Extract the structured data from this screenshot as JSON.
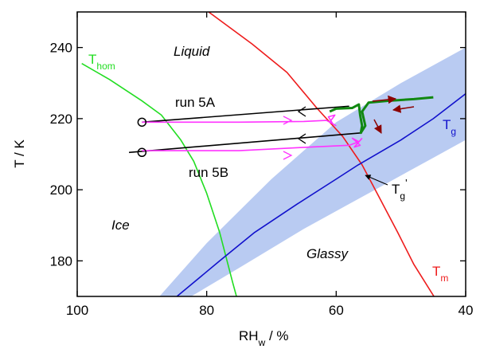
{
  "chart_data": {
    "type": "line",
    "xlim": [
      100,
      40
    ],
    "ylim": [
      170,
      250
    ],
    "xticks": [
      100,
      80,
      60,
      40
    ],
    "yticks": [
      180,
      200,
      220,
      240
    ],
    "x_label": {
      "text": "RH",
      "sub": "w",
      "suffix": " / %"
    },
    "y_label": "T / K",
    "band": {
      "color": "#b9cbf2",
      "upper": {
        "x": [
          87.3,
          80,
          70,
          60,
          50,
          40
        ],
        "values": [
          170,
          185,
          203,
          219,
          230,
          240
        ]
      },
      "lower": {
        "x": [
          82.4,
          75,
          65,
          55,
          45,
          40
        ],
        "values": [
          170,
          178,
          189,
          199,
          209,
          214
        ]
      }
    },
    "series": [
      {
        "color": "#22dd22",
        "x": [
          99.3,
          95,
          90,
          87,
          84,
          82,
          80,
          78,
          76,
          75.4
        ],
        "values": [
          235.5,
          231,
          225,
          221,
          214,
          208,
          199,
          188,
          174,
          170
        ]
      },
      {
        "color": "#ee1c1c",
        "x": [
          79.7,
          73,
          67.6,
          63,
          59,
          56,
          53.1,
          50.5,
          48,
          44.9
        ],
        "values": [
          250,
          241,
          233,
          223,
          215,
          207,
          197,
          188,
          179,
          170
        ]
      },
      {
        "color": "#1111cc",
        "x": [
          84.6,
          78,
          72.6,
          66,
          60,
          56.6,
          50,
          45,
          40
        ],
        "values": [
          170,
          180,
          188,
          196,
          203,
          207,
          214,
          220,
          227
        ]
      },
      {
        "color": "#000000",
        "x": [
          90,
          58
        ],
        "values": [
          219,
          223.5
        ]
      },
      {
        "color": "#000000",
        "x": [
          92,
          56
        ],
        "values": [
          210.5,
          216
        ]
      },
      {
        "color": "#ff33ff",
        "x": [
          90,
          75,
          65,
          61.5,
          60.5,
          61.2,
          60.2,
          61,
          60
        ],
        "values": [
          219,
          219,
          219.2,
          219.5,
          218.5,
          220.5,
          221,
          219,
          218
        ]
      },
      {
        "color": "#ff33ff",
        "x": [
          90,
          75,
          64,
          58,
          56.5,
          57.5,
          56.3,
          57.2,
          56
        ],
        "values": [
          211,
          211,
          212,
          212.5,
          213.5,
          214.5,
          212.5,
          212,
          214.5
        ]
      },
      {
        "color": "#118811",
        "x": [
          61,
          60,
          57.5,
          56.5,
          56.3,
          56,
          56.2,
          55.5,
          56,
          55,
          52,
          48,
          45
        ],
        "values": [
          222,
          222.8,
          223,
          224,
          221,
          218,
          216,
          218,
          222,
          224.5,
          225,
          225.5,
          226
        ]
      }
    ],
    "markers": {
      "x": [
        90,
        90
      ],
      "values": [
        219,
        210.5
      ]
    },
    "annotations": [
      "Liquid",
      "Ice",
      "Glassy",
      "run 5A",
      "run 5B"
    ],
    "curve_labels": [
      {
        "text": "T",
        "sub": "hom",
        "color": "#22dd22"
      },
      {
        "text": "T",
        "sub": "g",
        "color": "#1111cc"
      },
      {
        "text": "T",
        "sub": "g",
        "sup": "'",
        "color": "#000000"
      },
      {
        "text": "T",
        "sub": "m",
        "color": "#ee1c1c"
      }
    ]
  }
}
